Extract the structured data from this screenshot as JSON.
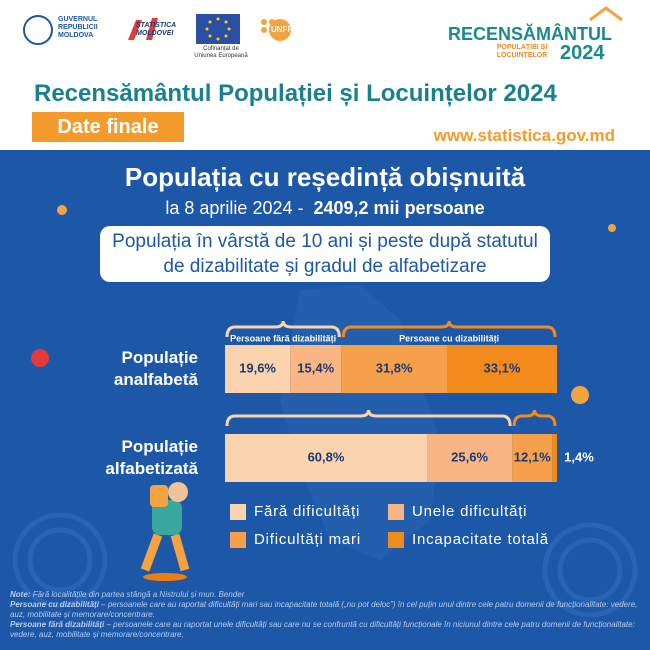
{
  "header": {
    "gov": "GUVERNUL REPUBLICII MOLDOVA",
    "stat": "STATISTICA MOLDOVEI",
    "eu": "Cofinanțat de Uniunea Europeană",
    "unfpa": "UNFPA",
    "brand": [
      "RECENSĂMÂNTUL",
      "POPULAȚIEI ȘI LOCUINȚELOR",
      "2024"
    ],
    "title": "Recensământul Populației și Locuințelor 2024",
    "badge": "Date finale",
    "url": "www.statistica.gov.md"
  },
  "chart_data": {
    "type": "stacked-bar",
    "title": "Populația cu reședință obișnuită",
    "subtitle": "la 8 aprilie 2024 -",
    "subtitle_value": "2409,2 mii persoane",
    "box_title": "Populația în vârstă de 10 ani și peste după statutul de dizabilitate și gradul de alfabetizare",
    "categories": [
      "Populație analfabetă",
      "Populație alfabetizată"
    ],
    "brace_labels": [
      "Persoane fără dizabilități",
      "Persoane cu dizabilități"
    ],
    "series": [
      {
        "name": "Fără dificultăți",
        "color": "#fbd3ae",
        "values": [
          19.6,
          60.8
        ],
        "value_labels": [
          "19,6%",
          "60,8%"
        ]
      },
      {
        "name": "Unele dificultăți",
        "color": "#f9b684",
        "values": [
          15.4,
          25.6
        ],
        "value_labels": [
          "15,4%",
          "25,6%"
        ]
      },
      {
        "name": "Dificultăți mari",
        "color": "#f7a04b",
        "values": [
          31.8,
          12.1
        ],
        "value_labels": [
          "31,8%",
          "12,1%"
        ]
      },
      {
        "name": "Incapacitate totală",
        "color": "#f38a1c",
        "values": [
          33.1,
          1.4
        ],
        "value_labels": [
          "33,1%",
          "1,4%"
        ]
      }
    ]
  },
  "notes": [
    {
      "term": "Note:",
      "text": "Fără localitățile din partea stângă a Nistrului și mun. Bender"
    },
    {
      "term": "Persoane cu dizabilități",
      "text": "– persoanele care au raportat dificultăți mari sau incapacitate totală („nu pot deloc”) în cel puțin unul dintre cele patru domenii de funcționalitate: vedere, auz, mobilitate și memorare/concentrare."
    },
    {
      "term": "Persoane fără dizabilități",
      "text": "– persoanele care au raportat unele dificultăți sau care nu se confruntă cu dificultăți funcționale în niciunul dintre cele patru domenii de funcționalitate: vedere, auz, mobilitate și memorare/concentrare."
    }
  ]
}
